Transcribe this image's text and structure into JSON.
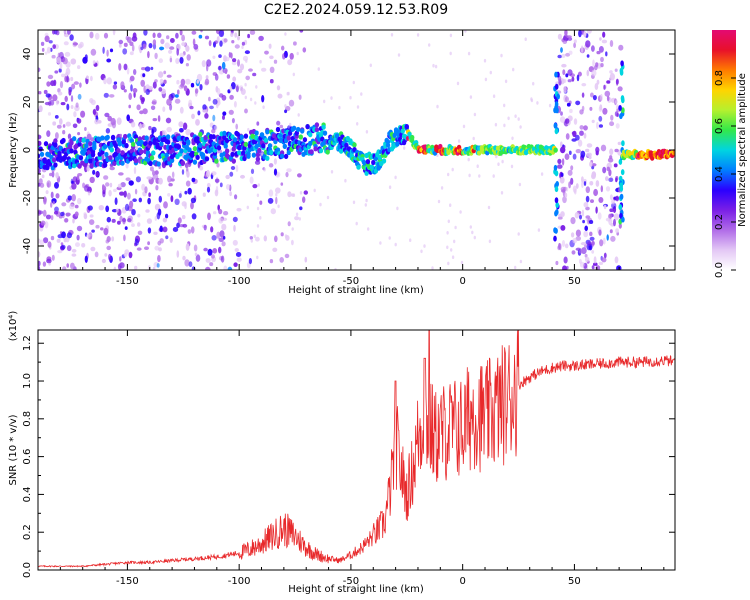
{
  "title": "C2E2.2024.059.12.53.R09",
  "colors": {
    "snr_line": "#e8292b",
    "colormap": [
      "#ffffff",
      "#e3c7f5",
      "#b06be8",
      "#7a1fe6",
      "#2a00ff",
      "#0080ff",
      "#00d5e0",
      "#33e84a",
      "#b6f02e",
      "#ffd400",
      "#ff7a00",
      "#e8102a",
      "#e40a72"
    ]
  },
  "chart_data": [
    {
      "type": "heatmap",
      "xlabel": "Height of straight line (km)",
      "ylabel": "Frequency (Hz)",
      "xlim": [
        -190,
        95
      ],
      "ylim": [
        -50,
        50
      ],
      "xticks": [
        -150,
        -100,
        -50,
        0,
        50
      ],
      "yticks": [
        -40,
        -20,
        0,
        20,
        40
      ],
      "colorbar": {
        "label": "Normalized spectral amplitude",
        "range": [
          0.0,
          1.0
        ],
        "ticks": [
          "0.0",
          "0.2",
          "0.4",
          "0.6",
          "0.8"
        ]
      },
      "trace": {
        "x": [
          -190,
          -170,
          -150,
          -130,
          -110,
          -90,
          -70,
          -62,
          -55,
          -50,
          -45,
          -38,
          -32,
          -27,
          -25,
          -20,
          -15,
          -10,
          -5,
          0,
          10,
          20,
          30,
          40,
          72,
          80,
          95
        ],
        "y": [
          -2,
          -1,
          0,
          0,
          1,
          2,
          4,
          5,
          3,
          1,
          -6,
          -5,
          4,
          7,
          7,
          1,
          0,
          0,
          0,
          0,
          0,
          0,
          0,
          0,
          -2,
          -2,
          -2
        ]
      }
    },
    {
      "type": "line",
      "xlabel": "Height of straight line (km)",
      "ylabel": "SNR (10 * v/v)",
      "yscale_label": "(x10⁴)",
      "xlim": [
        -190,
        95
      ],
      "ylim": [
        0,
        1.27
      ],
      "xticks": [
        -150,
        -100,
        -50,
        0,
        50
      ],
      "yticks": [
        "0.0",
        "0.2",
        "0.4",
        "0.6",
        "0.8",
        "1.0",
        "1.2"
      ],
      "series": [
        {
          "x": [
            -190,
            -180,
            -170,
            -160,
            -150,
            -140,
            -130,
            -120,
            -110,
            -100,
            -95,
            -90,
            -85,
            -80,
            -75,
            -70,
            -65,
            -60,
            -55,
            -50,
            -45,
            -40,
            -35,
            -32,
            -30,
            -28,
            -25,
            -22,
            -20,
            -17,
            -15,
            -12,
            -10,
            -5,
            0,
            5,
            10,
            15,
            20,
            25,
            30,
            35,
            40,
            45,
            50,
            60,
            70,
            80,
            90,
            95
          ],
          "y": [
            0.02,
            0.02,
            0.02,
            0.03,
            0.04,
            0.04,
            0.05,
            0.06,
            0.07,
            0.09,
            0.11,
            0.14,
            0.18,
            0.22,
            0.18,
            0.12,
            0.08,
            0.06,
            0.05,
            0.08,
            0.12,
            0.18,
            0.25,
            0.45,
            0.7,
            0.55,
            0.4,
            0.55,
            0.7,
            0.8,
            0.75,
            0.7,
            0.72,
            0.75,
            0.75,
            0.85,
            0.8,
            0.85,
            0.9,
            0.98,
            1.02,
            1.05,
            1.07,
            1.08,
            1.08,
            1.09,
            1.1,
            1.1,
            1.11,
            1.1
          ]
        }
      ]
    }
  ]
}
